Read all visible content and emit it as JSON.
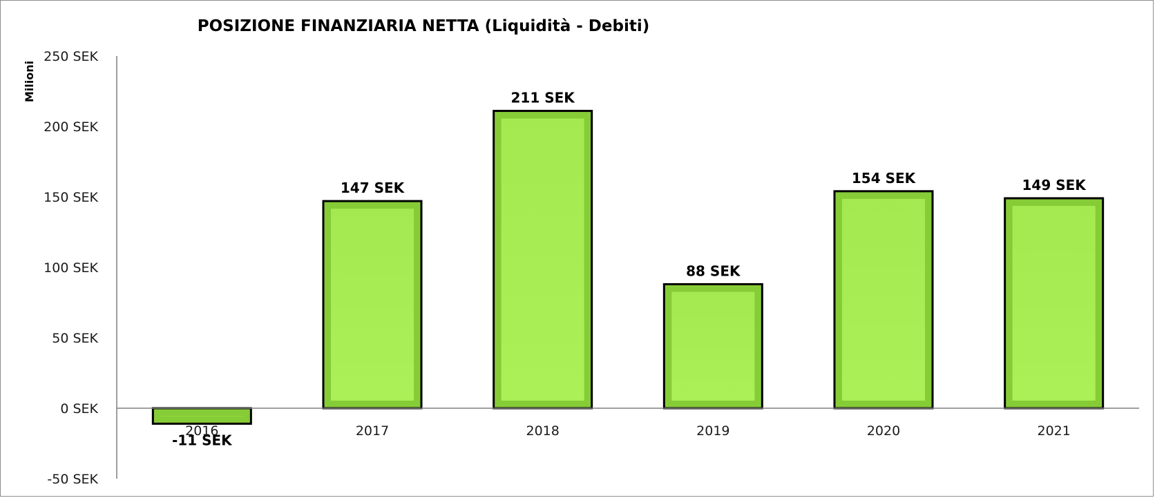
{
  "chart_data": {
    "type": "bar",
    "title": "POSIZIONE FINANZIARIA NETTA (Liquidità - Debiti)",
    "ylabel": "Milioni",
    "xlabel": "",
    "categories": [
      "2016",
      "2017",
      "2018",
      "2019",
      "2020",
      "2021"
    ],
    "values": [
      -11,
      147,
      211,
      88,
      154,
      149
    ],
    "data_labels": [
      "-11 SEK",
      "147 SEK",
      "211 SEK",
      "88 SEK",
      "154 SEK",
      "149 SEK"
    ],
    "ylim": [
      -50,
      250
    ],
    "yticks": [
      250,
      200,
      150,
      100,
      50,
      0,
      -50
    ],
    "ytick_labels": [
      "250 SEK",
      "200 SEK",
      "150 SEK",
      "100 SEK",
      "50 SEK",
      "0 SEK",
      "-50 SEK"
    ],
    "grid": false,
    "legend": "none",
    "colors": {
      "bar_fill": "#a6ec52",
      "bar_edge": "#86cc37",
      "bar_outline": "#000000",
      "axis": "#7f7f7f"
    }
  }
}
